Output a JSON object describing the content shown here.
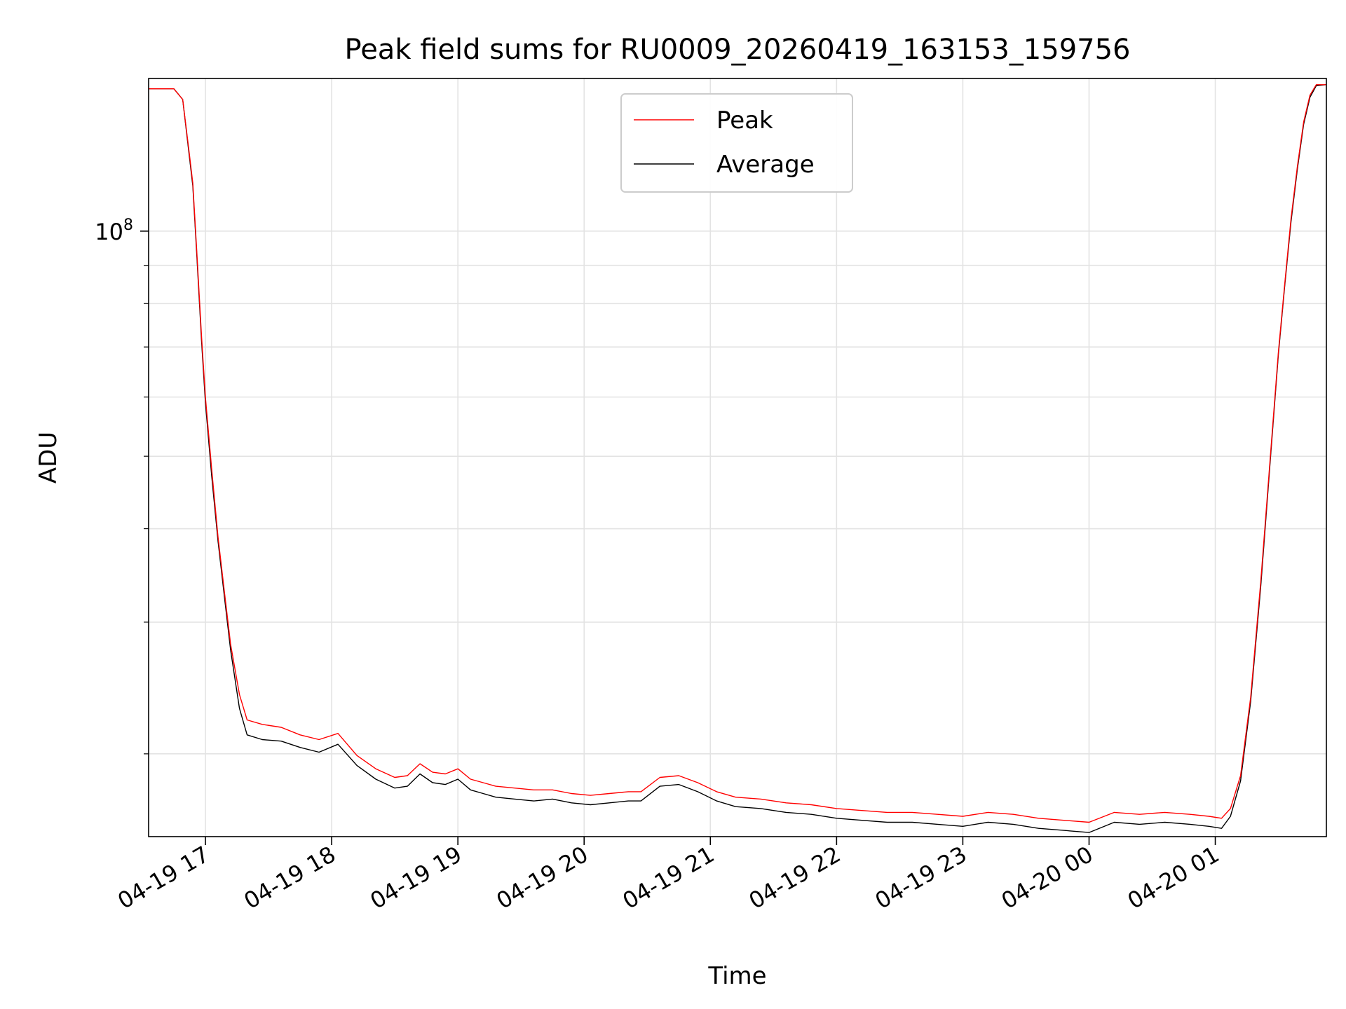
{
  "chart_data": {
    "type": "line",
    "title": "Peak field sums for RU0009_20260419_163153_159756",
    "xlabel": "Time",
    "ylabel": "ADU",
    "yscale": "log",
    "ylim": [
      15500000,
      160000000
    ],
    "xlim_hours": [
      16.55,
      25.88
    ],
    "grid": true,
    "legend": {
      "placement": "upper-center",
      "entries": [
        "Peak",
        "Average"
      ]
    },
    "x_ticks": [
      {
        "hour": 17,
        "label": "04-19 17"
      },
      {
        "hour": 18,
        "label": "04-19 18"
      },
      {
        "hour": 19,
        "label": "04-19 19"
      },
      {
        "hour": 20,
        "label": "04-19 20"
      },
      {
        "hour": 21,
        "label": "04-19 21"
      },
      {
        "hour": 22,
        "label": "04-19 22"
      },
      {
        "hour": 23,
        "label": "04-19 23"
      },
      {
        "hour": 24,
        "label": "04-20 00"
      },
      {
        "hour": 25,
        "label": "04-20 01"
      }
    ],
    "y_major_ticks": [
      {
        "value": 100000000,
        "label": "10^8"
      }
    ],
    "y_minor_ticks": [
      20000000,
      30000000,
      40000000,
      50000000,
      60000000,
      70000000,
      80000000,
      90000000
    ],
    "series": [
      {
        "name": "Peak",
        "color": "#ff0000",
        "x": [
          16.55,
          16.6,
          16.75,
          16.82,
          16.87,
          16.9,
          16.93,
          16.97,
          17.0,
          17.05,
          17.1,
          17.15,
          17.2,
          17.27,
          17.33,
          17.45,
          17.6,
          17.75,
          17.9,
          18.05,
          18.2,
          18.35,
          18.5,
          18.6,
          18.7,
          18.8,
          18.9,
          19.0,
          19.1,
          19.2,
          19.3,
          19.45,
          19.6,
          19.75,
          19.9,
          20.05,
          20.2,
          20.35,
          20.45,
          20.6,
          20.75,
          20.9,
          21.05,
          21.2,
          21.4,
          21.6,
          21.8,
          22.0,
          22.2,
          22.4,
          22.6,
          22.8,
          23.0,
          23.2,
          23.4,
          23.6,
          23.8,
          24.0,
          24.2,
          24.4,
          24.6,
          24.8,
          24.95,
          25.05,
          25.12,
          25.2,
          25.28,
          25.36,
          25.44,
          25.5,
          25.55,
          25.6,
          25.65,
          25.7,
          25.75,
          25.8,
          25.88
        ],
        "y": [
          155000000,
          155000000,
          155000000,
          150000000,
          128000000,
          116000000,
          95000000,
          72000000,
          60000000,
          48000000,
          39000000,
          33000000,
          28000000,
          24000000,
          22200000,
          21900000,
          21700000,
          21200000,
          20900000,
          21300000,
          19900000,
          19100000,
          18600000,
          18700000,
          19400000,
          18900000,
          18800000,
          19100000,
          18500000,
          18300000,
          18100000,
          18000000,
          17900000,
          17900000,
          17700000,
          17600000,
          17700000,
          17800000,
          17800000,
          18600000,
          18700000,
          18300000,
          17800000,
          17500000,
          17400000,
          17200000,
          17100000,
          16900000,
          16800000,
          16700000,
          16700000,
          16600000,
          16500000,
          16700000,
          16600000,
          16400000,
          16300000,
          16200000,
          16700000,
          16600000,
          16700000,
          16600000,
          16500000,
          16400000,
          16900000,
          18700000,
          23800000,
          34000000,
          51000000,
          69000000,
          85000000,
          104000000,
          122000000,
          140000000,
          152000000,
          157000000,
          157000000
        ]
      },
      {
        "name": "Average",
        "color": "#000000",
        "x": [
          16.55,
          16.6,
          16.75,
          16.82,
          16.87,
          16.9,
          16.93,
          16.97,
          17.0,
          17.05,
          17.1,
          17.15,
          17.2,
          17.27,
          17.33,
          17.45,
          17.6,
          17.75,
          17.9,
          18.05,
          18.2,
          18.35,
          18.5,
          18.6,
          18.7,
          18.8,
          18.9,
          19.0,
          19.1,
          19.2,
          19.3,
          19.45,
          19.6,
          19.75,
          19.9,
          20.05,
          20.2,
          20.35,
          20.45,
          20.6,
          20.75,
          20.9,
          21.05,
          21.2,
          21.4,
          21.6,
          21.8,
          22.0,
          22.2,
          22.4,
          22.6,
          22.8,
          23.0,
          23.2,
          23.4,
          23.6,
          23.8,
          24.0,
          24.2,
          24.4,
          24.6,
          24.8,
          24.95,
          25.05,
          25.12,
          25.2,
          25.28,
          25.36,
          25.44,
          25.5,
          25.55,
          25.6,
          25.65,
          25.7,
          25.75,
          25.8,
          25.88
        ],
        "y": [
          155000000,
          155000000,
          155000000,
          150000000,
          127000000,
          115000000,
          94000000,
          71000000,
          59000000,
          47000000,
          38500000,
          32500000,
          27500000,
          23000000,
          21200000,
          20900000,
          20800000,
          20400000,
          20100000,
          20600000,
          19300000,
          18500000,
          18000000,
          18100000,
          18800000,
          18300000,
          18200000,
          18500000,
          17900000,
          17700000,
          17500000,
          17400000,
          17300000,
          17400000,
          17200000,
          17100000,
          17200000,
          17300000,
          17300000,
          18100000,
          18200000,
          17800000,
          17300000,
          17000000,
          16900000,
          16700000,
          16600000,
          16400000,
          16300000,
          16200000,
          16200000,
          16100000,
          16000000,
          16200000,
          16100000,
          15900000,
          15800000,
          15700000,
          16200000,
          16100000,
          16200000,
          16100000,
          16000000,
          15900000,
          16500000,
          18400000,
          23500000,
          33500000,
          50500000,
          68500000,
          84500000,
          103000000,
          121000000,
          139000000,
          151000000,
          156500000,
          157000000
        ]
      }
    ]
  }
}
